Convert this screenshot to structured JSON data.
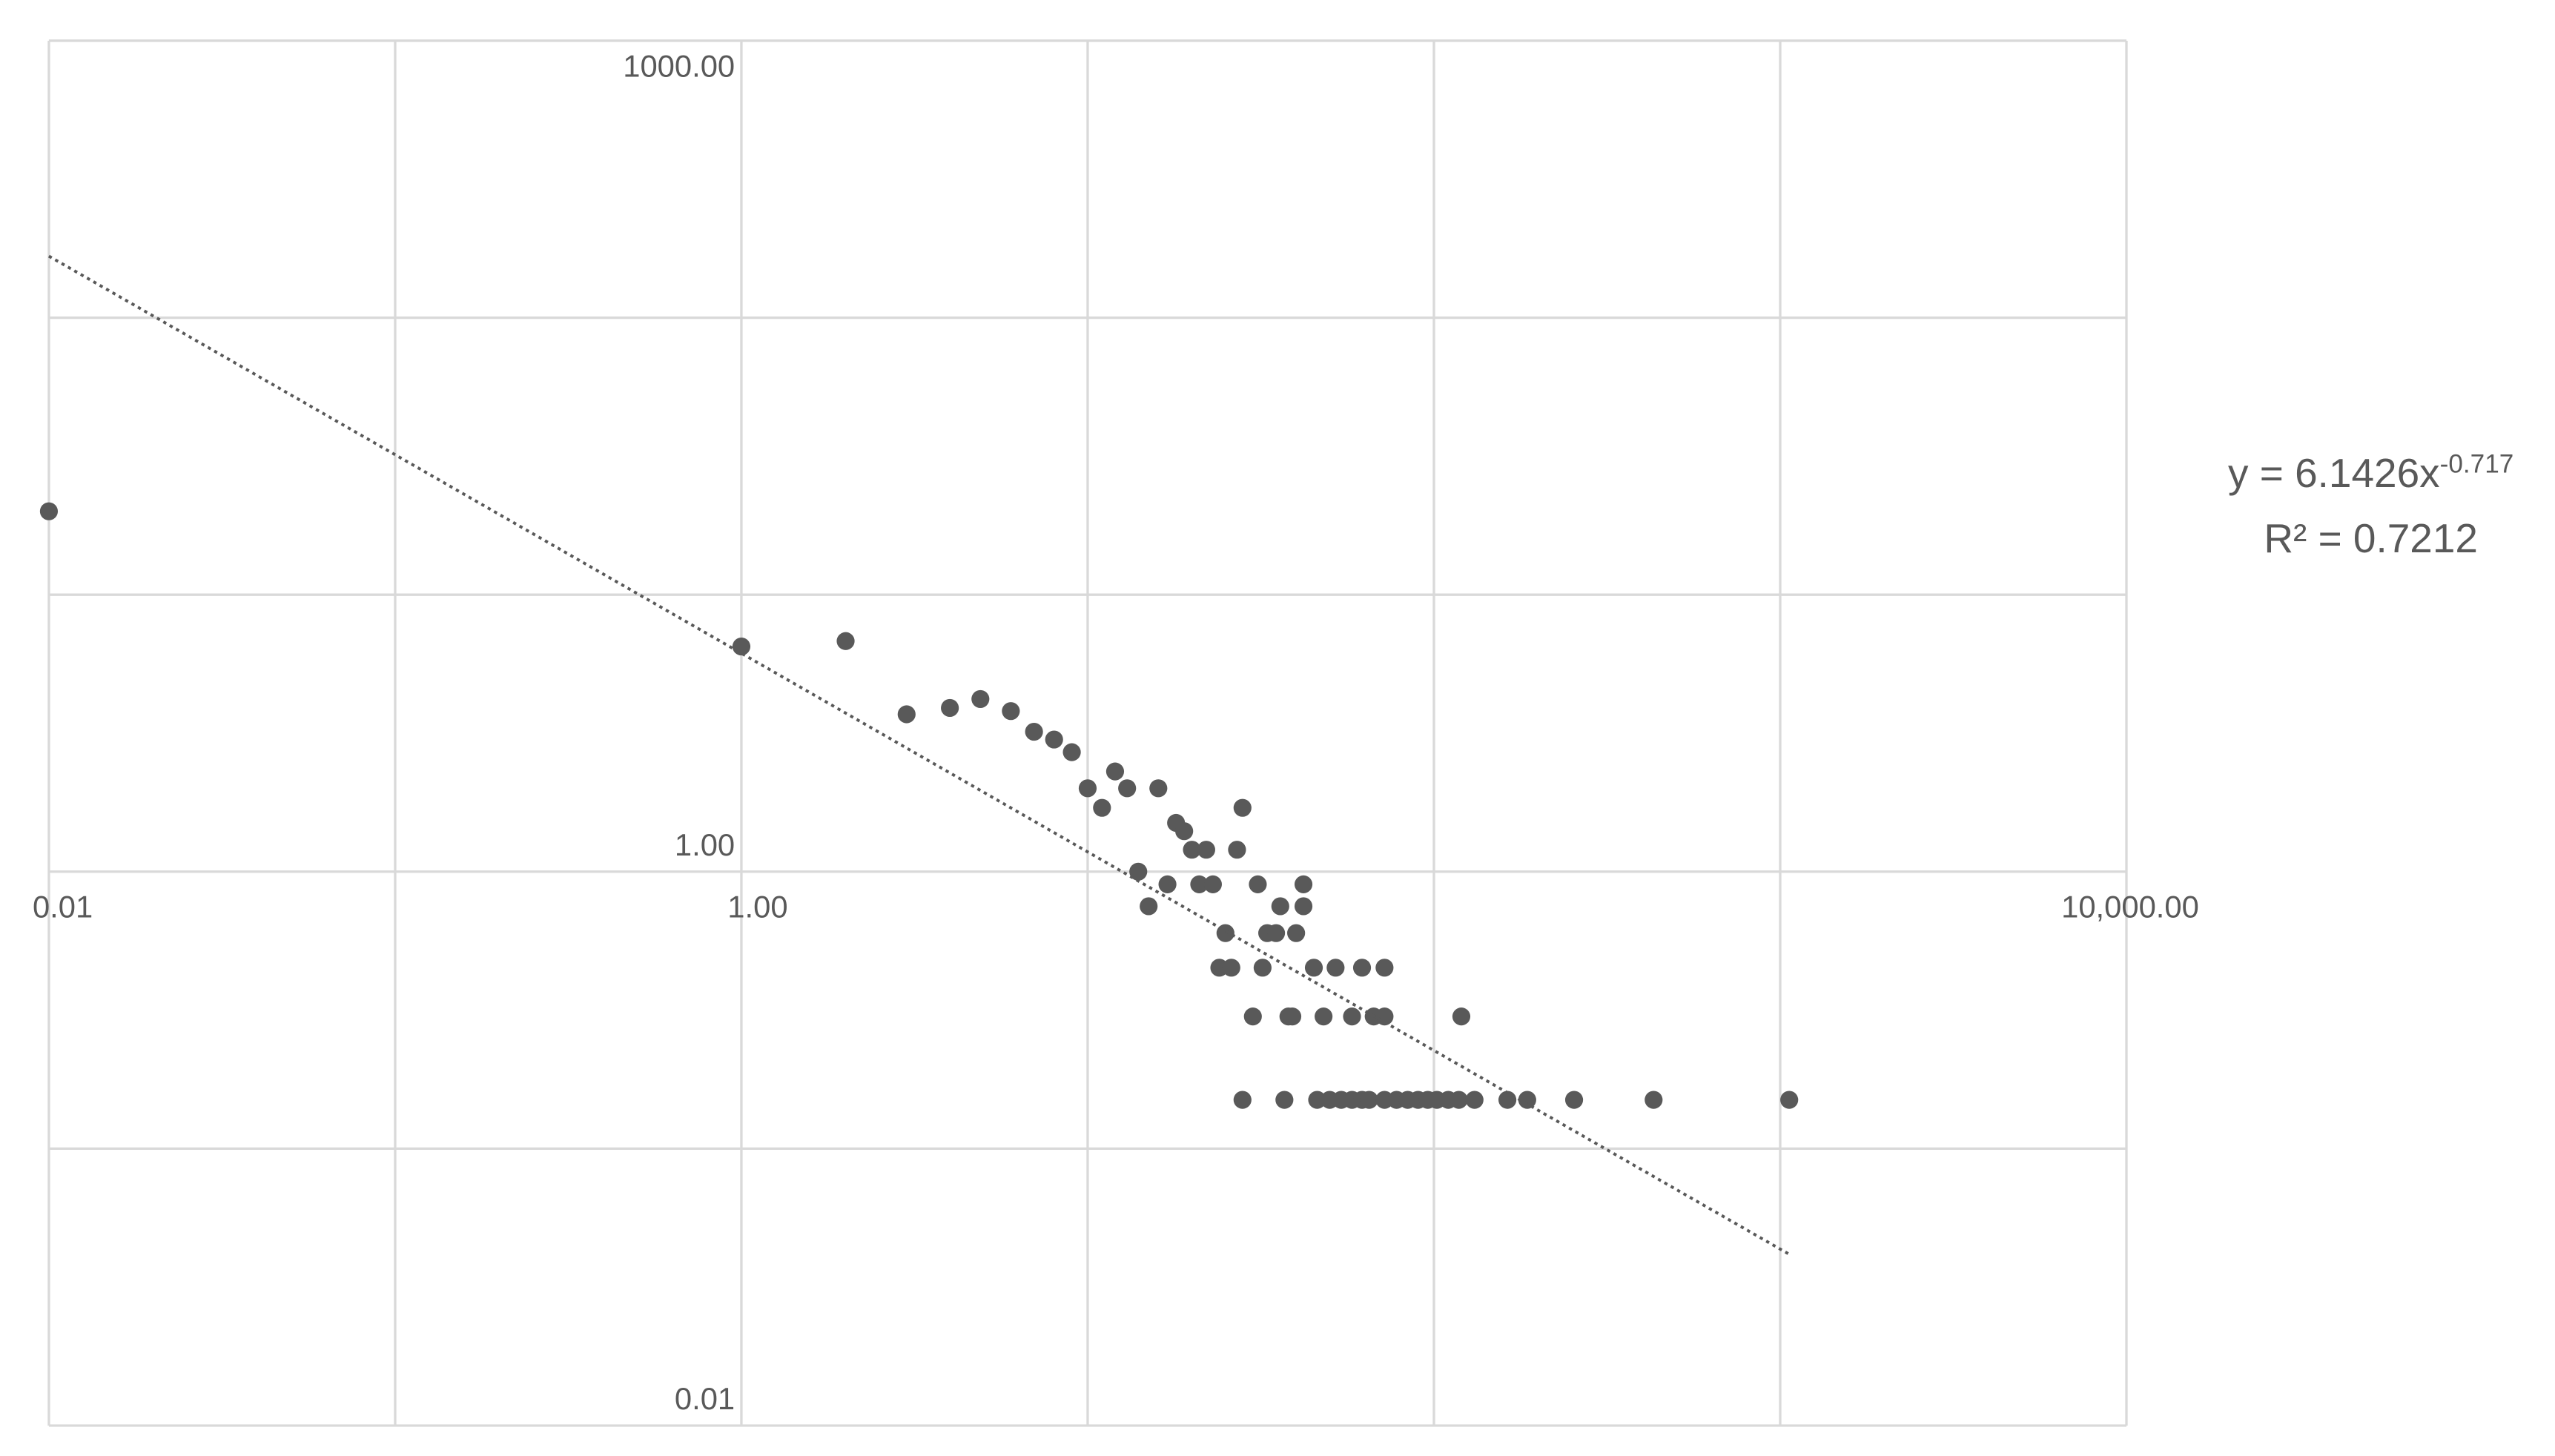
{
  "chart_data": {
    "type": "scatter",
    "log_x": true,
    "log_y": true,
    "grid": true,
    "xlim": [
      0.01,
      10000
    ],
    "ylim": [
      0.01,
      1000
    ],
    "xgrid": [
      0.01,
      0.1,
      1,
      10,
      100,
      1000,
      10000
    ],
    "ygrid": [
      0.01,
      0.1,
      1,
      10,
      100,
      1000
    ],
    "xticks": [
      {
        "value": 0.01,
        "label": "0.01"
      },
      {
        "value": 1,
        "label": "1.00"
      },
      {
        "value": 10000,
        "label": "10,000.00"
      }
    ],
    "yticks": [
      {
        "value": 0.01,
        "label": "0.01"
      },
      {
        "value": 1,
        "label": "1.00"
      },
      {
        "value": 1000,
        "label": "1000.00"
      }
    ],
    "axis_cross": {
      "x": 1,
      "y": 1
    },
    "series": [
      {
        "color": "#595959",
        "x": [
          0.01,
          1,
          2,
          3,
          4,
          4.9,
          6,
          7,
          8,
          9,
          10,
          11,
          12,
          13,
          14,
          15,
          16,
          17,
          18,
          19,
          20,
          21,
          22,
          23,
          24,
          25,
          26,
          27,
          28,
          30,
          31,
          32,
          33,
          35,
          36,
          38,
          39,
          40,
          42,
          42,
          45,
          48,
          52,
          58,
          62,
          67,
          72,
          72,
          120,
          28,
          37,
          46,
          50,
          54,
          58,
          62,
          65,
          72,
          78,
          84,
          90,
          96,
          102,
          110,
          118,
          131,
          163,
          186,
          254,
          431,
          1062
        ],
        "values": [
          20,
          6.5,
          6.8,
          3.7,
          3.9,
          4.2,
          3.8,
          3.2,
          3,
          2.7,
          2,
          1.7,
          2.3,
          2,
          1,
          0.75,
          2,
          0.9,
          1.5,
          1.4,
          1.2,
          0.9,
          1.2,
          0.9,
          0.45,
          0.6,
          0.45,
          1.2,
          1.7,
          0.3,
          0.9,
          0.45,
          0.6,
          0.6,
          0.75,
          0.3,
          0.3,
          0.6,
          0.75,
          0.9,
          0.45,
          0.3,
          0.45,
          0.3,
          0.45,
          0.3,
          0.45,
          0.3,
          0.3,
          0.15,
          0.15,
          0.15,
          0.15,
          0.15,
          0.15,
          0.15,
          0.15,
          0.15,
          0.15,
          0.15,
          0.15,
          0.15,
          0.15,
          0.15,
          0.15,
          0.15,
          0.15,
          0.15,
          0.15,
          0.15,
          0.15
        ]
      }
    ],
    "trendline": {
      "type": "power",
      "coefficient": 6.1426,
      "exponent": -0.717,
      "r2": 0.7212,
      "equation_text": "y = 6.1426x",
      "equation_exponent": "-0.717",
      "r2_text": "R² = 0.7212",
      "color": "#595959"
    }
  }
}
